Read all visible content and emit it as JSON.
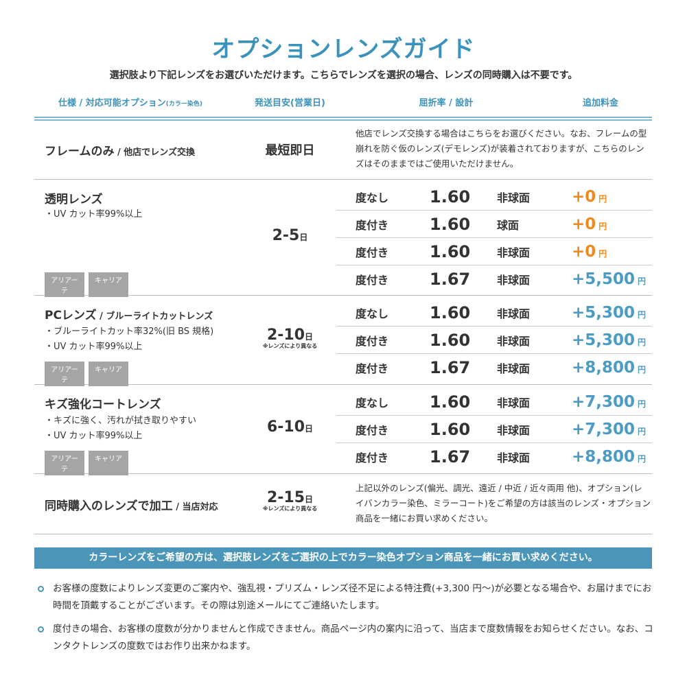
{
  "title": "オプションレンズガイド",
  "subtitle": "選択肢より下記レンズをお選びいただけます。こちらでレンズを選択の場合、レンズの同時購入は不要です。",
  "header": {
    "spec": "仕様 / 対応可能オプション",
    "spec_small": "(カラー染色)",
    "ship": "発送目安(営業日)",
    "index": "屈折率 / 設計",
    "price": "追加料金"
  },
  "colors": {
    "accent": "#3b93bb",
    "plus_zero": "#f08a1d",
    "plus_price": "#4a9cc4",
    "banner": "#4b96b8"
  },
  "frame_only": {
    "title": "フレームのみ",
    "sub": " / 他店でレンズ交換",
    "days": "最短即日",
    "desc": "他店でレンズ交換する場合はこちらをお選びください。なお、フレームの型崩れを防ぐ仮のレンズ(デモレンズ)が装着されておりますが、こちらのレンズはそのままではご使用いただけません。"
  },
  "groups": [
    {
      "title": "透明レンズ",
      "sub": "",
      "bullets": [
        "・UV カット率99%以上"
      ],
      "tags": [
        "アリアーテ",
        "キャリア"
      ],
      "days": "2-5",
      "day_unit": "日",
      "note": "",
      "rows": [
        [
          "度なし",
          "1.60",
          "非球面",
          "+0",
          "円"
        ],
        [
          "度付き",
          "1.60",
          "球面",
          "+0",
          "円"
        ],
        [
          "度付き",
          "1.60",
          "非球面",
          "+0",
          "円"
        ],
        [
          "度付き",
          "1.67",
          "非球面",
          "+5,500",
          "円"
        ]
      ]
    },
    {
      "title": "PCレンズ",
      "sub": " / ブルーライトカットレンズ",
      "bullets": [
        "・ブルーライトカット率32%(旧 BS 規格)",
        "・UV カット率99%以上"
      ],
      "tags": [
        "アリアーテ",
        "キャリア"
      ],
      "days": "2-10",
      "day_unit": "日",
      "note": "※レンズにより異なる",
      "rows": [
        [
          "度なし",
          "1.60",
          "非球面",
          "+5,300",
          "円"
        ],
        [
          "度付き",
          "1.60",
          "非球面",
          "+5,300",
          "円"
        ],
        [
          "度付き",
          "1.67",
          "非球面",
          "+8,800",
          "円"
        ]
      ]
    },
    {
      "title": "キズ強化コートレンズ",
      "sub": "",
      "bullets": [
        "・キズに強く、汚れが拭き取りやすい",
        "・UV カット率99%以上"
      ],
      "tags": [
        "アリアーテ",
        "キャリア"
      ],
      "days": "6-10",
      "day_unit": "日",
      "note": "",
      "rows": [
        [
          "度なし",
          "1.60",
          "非球面",
          "+7,300",
          "円"
        ],
        [
          "度付き",
          "1.60",
          "非球面",
          "+7,300",
          "円"
        ],
        [
          "度付き",
          "1.67",
          "非球面",
          "+8,800",
          "円"
        ]
      ]
    }
  ],
  "processing": {
    "title": "同時購入のレンズで加工",
    "sub": " / 当店対応",
    "days": "2-15",
    "day_unit": "日",
    "note": "※レンズにより異なる",
    "desc": "上記以外のレンズ(偏光、調光、遠近 / 中近 / 近々両用 他)、オプション(レイバンカラー染色、ミラーコート)をご希望の方は該当のレンズ・オプション商品を一緒にお買い求めください。"
  },
  "banner": "カラーレンズをご希望の方は、選択肢レンズをご選択の上でカラー染色オプション商品を一緒にお買い求めください。",
  "notes": [
    "お客様の度数によりレンズ変更のご案内や、強乱視・プリズム・レンズ径不足による特注費(+3,300 円〜)が必要となる場合や、お届けまでにお時間を頂戴することがございます。その際は別途メールにてご連絡いたします。",
    "度付きの場合、お客様の度数が分かりませんと作成できません。商品ページ内の案内に沿って、当店まで度数情報をお知らせください。なお、コンタクトレンズの度数ではお作り出来かねます。"
  ]
}
